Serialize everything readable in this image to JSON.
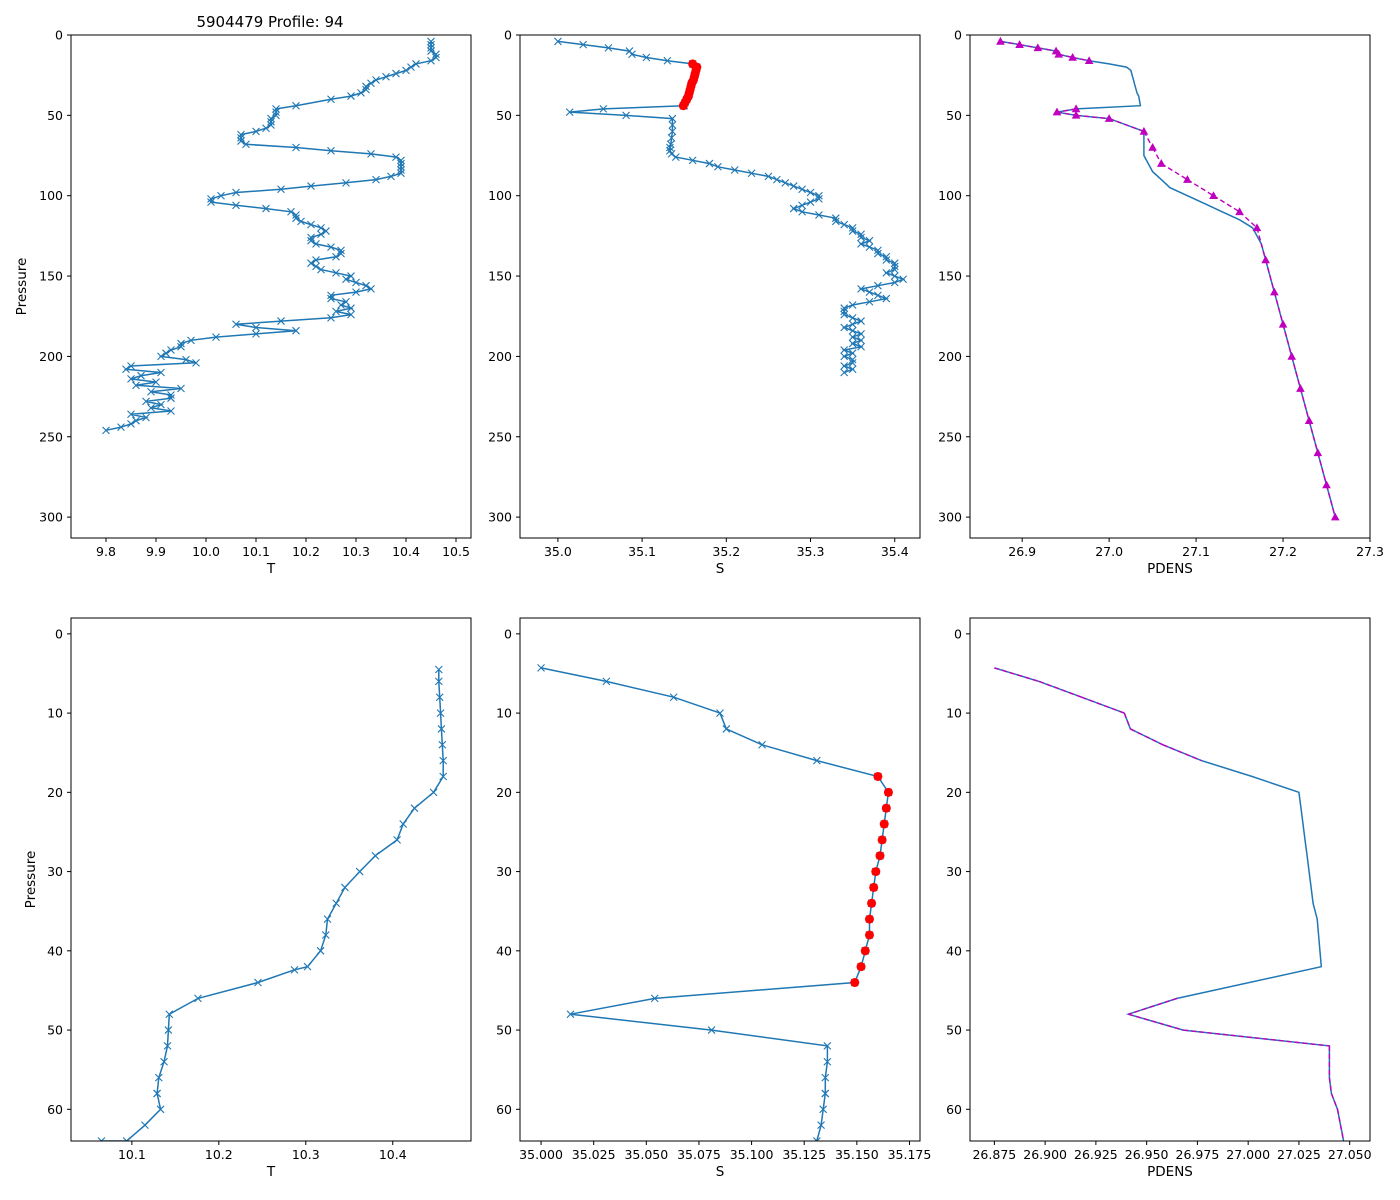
{
  "figure_title": "5904479 Profile: 94",
  "colors": {
    "line": "#1f77b4",
    "qc_flag": "#ff0000",
    "density": "#bf00bf"
  },
  "chart_data": [
    {
      "id": "t_full",
      "type": "line",
      "xlabel": "T",
      "ylabel": "Pressure",
      "xlim": [
        9.73,
        10.53
      ],
      "ylim": [
        313,
        0
      ],
      "xticks": [
        "9.8",
        "9.9",
        "10.0",
        "10.1",
        "10.2",
        "10.3",
        "10.4",
        "10.5"
      ],
      "yticks": [
        "0",
        "50",
        "100",
        "150",
        "200",
        "250",
        "300"
      ],
      "series": [
        {
          "name": "T",
          "marker": "x",
          "x": [
            10.45,
            10.45,
            10.45,
            10.45,
            10.46,
            10.46,
            10.45,
            10.42,
            10.41,
            10.4,
            10.38,
            10.36,
            10.34,
            10.33,
            10.32,
            10.32,
            10.31,
            10.29,
            10.25,
            10.18,
            10.14,
            10.14,
            10.14,
            10.13,
            10.13,
            10.13,
            10.12,
            10.1,
            10.07,
            10.07,
            10.07,
            10.08,
            10.18,
            10.25,
            10.33,
            10.38,
            10.39,
            10.39,
            10.39,
            10.39,
            10.39,
            10.37,
            10.34,
            10.28,
            10.21,
            10.15,
            10.06,
            10.03,
            10.01,
            10.01,
            10.06,
            10.12,
            10.17,
            10.18,
            10.18,
            10.19,
            10.21,
            10.23,
            10.24,
            10.23,
            10.21,
            10.21,
            10.22,
            10.25,
            10.27,
            10.27,
            10.26,
            10.22,
            10.21,
            10.22,
            10.23,
            10.26,
            10.29,
            10.28,
            10.3,
            10.32,
            10.33,
            10.3,
            10.25,
            10.25,
            10.28,
            10.27,
            10.29,
            10.26,
            10.29,
            10.25,
            10.15,
            10.06,
            10.1,
            10.18,
            10.1,
            10.02,
            9.97,
            9.95,
            9.95,
            9.93,
            9.92,
            9.91,
            9.96,
            9.98,
            9.85,
            9.84,
            9.91,
            9.87,
            9.85,
            9.9,
            9.86,
            9.95,
            9.89,
            9.93,
            9.93,
            9.88,
            9.91,
            9.89,
            9.93,
            9.85,
            9.88,
            9.86,
            9.85,
            9.83,
            9.8
          ],
          "y": [
            4,
            6,
            8,
            10,
            12,
            14,
            16,
            18,
            20,
            22,
            24,
            26,
            28,
            30,
            32,
            34,
            36,
            38,
            40,
            44,
            46,
            48,
            50,
            52,
            54,
            56,
            58,
            60,
            62,
            64,
            66,
            68,
            70,
            72,
            74,
            76,
            78,
            80,
            82,
            84,
            86,
            88,
            90,
            92,
            94,
            96,
            98,
            100,
            102,
            104,
            106,
            108,
            110,
            112,
            114,
            116,
            118,
            120,
            122,
            124,
            126,
            128,
            130,
            132,
            134,
            136,
            138,
            140,
            142,
            144,
            146,
            148,
            150,
            152,
            154,
            156,
            158,
            160,
            162,
            164,
            166,
            168,
            170,
            172,
            174,
            176,
            178,
            180,
            182,
            184,
            186,
            188,
            190,
            192,
            194,
            196,
            198,
            200,
            202,
            204,
            206,
            208,
            210,
            212,
            214,
            216,
            218,
            220,
            222,
            224,
            226,
            228,
            230,
            232,
            234,
            236,
            238,
            240,
            242,
            244,
            246
          ]
        }
      ]
    },
    {
      "id": "s_full",
      "type": "line",
      "xlabel": "S",
      "ylabel": "",
      "xlim": [
        34.955,
        35.43
      ],
      "ylim": [
        313,
        0
      ],
      "xticks": [
        "35.0",
        "35.1",
        "35.2",
        "35.3",
        "35.4"
      ],
      "yticks": [
        "0",
        "50",
        "100",
        "150",
        "200",
        "250",
        "300"
      ],
      "series": [
        {
          "name": "S",
          "marker": "x",
          "x": [
            35.0,
            35.03,
            35.06,
            35.085,
            35.088,
            35.105,
            35.13,
            35.16,
            35.165,
            35.164,
            35.163,
            35.162,
            35.161,
            35.159,
            35.158,
            35.157,
            35.156,
            35.155,
            35.153,
            35.151,
            35.149,
            35.15,
            35.054,
            35.014,
            35.081,
            35.136,
            35.136,
            35.136,
            35.135,
            35.134,
            35.133,
            35.133,
            35.135,
            35.14,
            35.16,
            35.18,
            35.19,
            35.21,
            35.23,
            35.25,
            35.26,
            35.27,
            35.28,
            35.29,
            35.3,
            35.31,
            35.31,
            35.3,
            35.29,
            35.28,
            35.29,
            35.31,
            35.33,
            35.33,
            35.34,
            35.35,
            35.35,
            35.36,
            35.36,
            35.37,
            35.36,
            35.37,
            35.38,
            35.38,
            35.39,
            35.39,
            35.4,
            35.4,
            35.4,
            35.39,
            35.4,
            35.41,
            35.4,
            35.38,
            35.36,
            35.37,
            35.38,
            35.39,
            35.37,
            35.35,
            35.34,
            35.34,
            35.34,
            35.35,
            35.36,
            35.35,
            35.34,
            35.35,
            35.36,
            35.35,
            35.36,
            35.35,
            35.36,
            35.34,
            35.35,
            35.34,
            35.35,
            35.35,
            35.34,
            35.35,
            35.34
          ],
          "y": [
            4,
            6,
            8,
            10,
            12,
            14,
            16,
            18,
            20,
            22,
            24,
            26,
            28,
            30,
            32,
            34,
            36,
            38,
            40,
            42,
            44,
            44,
            46,
            48,
            50,
            52,
            56,
            60,
            64,
            68,
            70,
            72,
            74,
            76,
            78,
            80,
            82,
            84,
            86,
            88,
            90,
            92,
            94,
            96,
            98,
            100,
            102,
            104,
            106,
            108,
            110,
            112,
            114,
            116,
            118,
            120,
            122,
            124,
            126,
            128,
            130,
            132,
            134,
            136,
            138,
            140,
            142,
            144,
            146,
            148,
            150,
            152,
            154,
            156,
            158,
            160,
            162,
            164,
            166,
            168,
            170,
            172,
            174,
            176,
            178,
            180,
            182,
            184,
            186,
            188,
            190,
            192,
            194,
            196,
            198,
            200,
            202,
            204,
            206,
            208,
            210
          ]
        }
      ],
      "flagged": {
        "x": [
          35.16,
          35.165,
          35.164,
          35.163,
          35.162,
          35.161,
          35.159,
          35.158,
          35.157,
          35.156,
          35.155,
          35.153,
          35.151,
          35.149
        ],
        "y": [
          18,
          20,
          22,
          24,
          26,
          28,
          30,
          32,
          34,
          36,
          38,
          40,
          42,
          44
        ]
      }
    },
    {
      "id": "pdens_full",
      "type": "line",
      "xlabel": "PDENS",
      "ylabel": "",
      "xlim": [
        26.84,
        27.3
      ],
      "ylim": [
        313,
        0
      ],
      "xticks": [
        "26.9",
        "27.0",
        "27.1",
        "27.2",
        "27.3"
      ],
      "yticks": [
        "0",
        "50",
        "100",
        "150",
        "200",
        "250",
        "300"
      ],
      "series": [
        {
          "name": "PDENS",
          "marker": "none",
          "x": [
            26.875,
            26.897,
            26.918,
            26.939,
            26.942,
            26.958,
            26.977,
            27.0,
            27.02,
            27.025,
            27.026,
            27.027,
            27.028,
            27.029,
            27.03,
            27.031,
            27.032,
            27.034,
            27.036,
            26.962,
            26.94,
            26.962,
            27.0,
            27.04,
            27.04,
            27.04,
            27.04,
            27.045,
            27.05,
            27.06,
            27.07,
            27.09,
            27.11,
            27.13,
            27.15,
            27.165,
            27.175,
            27.18,
            27.185,
            27.19,
            27.195,
            27.2,
            27.205,
            27.21,
            27.215,
            27.22,
            27.225,
            27.23,
            27.235,
            27.24,
            27.245,
            27.25,
            27.255,
            27.26
          ],
          "y": [
            4,
            6,
            8,
            10,
            12,
            14,
            16,
            18,
            20,
            22,
            24,
            26,
            28,
            30,
            32,
            34,
            36,
            38,
            44,
            46,
            48,
            50,
            52,
            60,
            65,
            70,
            75,
            80,
            85,
            90,
            95,
            100,
            105,
            110,
            115,
            120,
            130,
            140,
            150,
            160,
            170,
            180,
            190,
            200,
            210,
            220,
            230,
            240,
            250,
            260,
            270,
            280,
            290,
            300
          ]
        }
      ],
      "markers": {
        "x": [
          26.875,
          26.897,
          26.918,
          26.939,
          26.942,
          26.958,
          26.977,
          26.962,
          26.94,
          26.962,
          27.0,
          27.04,
          27.05,
          27.06,
          27.09,
          27.12,
          27.15,
          27.17,
          27.18,
          27.19,
          27.2,
          27.21,
          27.22,
          27.23,
          27.24,
          27.25,
          27.26
        ],
        "y": [
          4,
          6,
          8,
          10,
          12,
          14,
          16,
          46,
          48,
          50,
          52,
          60,
          70,
          80,
          90,
          100,
          110,
          120,
          140,
          160,
          180,
          200,
          220,
          240,
          260,
          280,
          300
        ]
      }
    },
    {
      "id": "t_zoom",
      "type": "line",
      "xlabel": "T",
      "ylabel": "Pressure",
      "xlim": [
        10.03,
        10.49
      ],
      "ylim": [
        64,
        -2
      ],
      "xticks": [
        "10.1",
        "10.2",
        "10.3",
        "10.4"
      ],
      "yticks": [
        "0",
        "10",
        "20",
        "30",
        "40",
        "50",
        "60"
      ],
      "series": [
        {
          "name": "T",
          "marker": "x",
          "x": [
            10.453,
            10.453,
            10.454,
            10.455,
            10.456,
            10.457,
            10.458,
            10.458,
            10.447,
            10.425,
            10.412,
            10.405,
            10.38,
            10.362,
            10.345,
            10.335,
            10.325,
            10.323,
            10.317,
            10.302,
            10.287,
            10.245,
            10.176,
            10.143,
            10.142,
            10.141,
            10.137,
            10.131,
            10.129,
            10.129,
            10.133,
            10.115,
            10.094,
            10.065
          ],
          "y": [
            4.5,
            6,
            8,
            10,
            12,
            14,
            16,
            18,
            20,
            22,
            24,
            26,
            28,
            30,
            32,
            34,
            36,
            38,
            40,
            42,
            42.4,
            44,
            46,
            48,
            50,
            52,
            54,
            56,
            58,
            58,
            60,
            62,
            64,
            64
          ]
        }
      ]
    },
    {
      "id": "s_zoom",
      "type": "line",
      "xlabel": "S",
      "ylabel": "",
      "xlim": [
        34.99,
        35.18
      ],
      "ylim": [
        64,
        -2
      ],
      "xticks": [
        "35.000",
        "35.025",
        "35.050",
        "35.075",
        "35.100",
        "35.125",
        "35.150",
        "35.175"
      ],
      "yticks": [
        "0",
        "10",
        "20",
        "30",
        "40",
        "50",
        "60"
      ],
      "series": [
        {
          "name": "S",
          "marker": "x",
          "x": [
            35.0,
            35.031,
            35.063,
            35.085,
            35.088,
            35.105,
            35.131,
            35.16,
            35.165,
            35.164,
            35.163,
            35.162,
            35.161,
            35.159,
            35.158,
            35.157,
            35.156,
            35.156,
            35.154,
            35.152,
            35.149,
            35.054,
            35.014,
            35.081,
            35.136,
            35.136,
            35.135,
            35.135,
            35.135,
            35.134,
            35.133,
            35.131
          ],
          "y": [
            4.3,
            6,
            8,
            10,
            12,
            14,
            16,
            18,
            20,
            22,
            24,
            26,
            28,
            30,
            32,
            34,
            36,
            38,
            40,
            42,
            44,
            46,
            48,
            50,
            52,
            54,
            56,
            58,
            58,
            60,
            62,
            64
          ]
        }
      ],
      "flagged": {
        "x": [
          35.16,
          35.165,
          35.164,
          35.163,
          35.162,
          35.161,
          35.159,
          35.158,
          35.157,
          35.156,
          35.156,
          35.154,
          35.152,
          35.149
        ],
        "y": [
          18,
          20,
          22,
          24,
          26,
          28,
          30,
          32,
          34,
          36,
          38,
          40,
          42,
          44
        ]
      }
    },
    {
      "id": "pdens_zoom",
      "type": "line",
      "xlabel": "PDENS",
      "ylabel": "",
      "xlim": [
        26.863,
        27.06
      ],
      "ylim": [
        64,
        -2
      ],
      "xticks": [
        "26.875",
        "26.900",
        "26.925",
        "26.950",
        "26.975",
        "27.000",
        "27.025",
        "27.050"
      ],
      "yticks": [
        "0",
        "10",
        "20",
        "30",
        "40",
        "50",
        "60"
      ],
      "series": [
        {
          "name": "PDENS",
          "marker": "none",
          "x": [
            26.875,
            26.897,
            26.918,
            26.939,
            26.942,
            26.958,
            26.977,
            27.002,
            27.025,
            27.026,
            27.027,
            27.028,
            27.029,
            27.03,
            27.031,
            27.032,
            27.034,
            27.036,
            26.965,
            26.941,
            26.968,
            27.04,
            27.04,
            27.041,
            27.044,
            27.047
          ],
          "y": [
            4.3,
            6,
            8,
            10,
            12,
            14,
            16,
            18,
            20,
            22,
            24,
            26,
            28,
            30,
            32,
            34,
            36,
            42,
            46,
            48,
            50,
            52,
            56,
            58,
            60,
            64
          ]
        }
      ],
      "markers": {
        "x": [
          26.875,
          26.897,
          26.918,
          26.939,
          26.942,
          26.958,
          26.977,
          26.965,
          26.941,
          26.968,
          27.04,
          27.04,
          27.041,
          27.044,
          27.047
        ],
        "y": [
          4.3,
          6,
          8,
          10,
          12,
          14,
          16,
          46,
          48,
          50,
          52,
          56,
          58,
          60,
          64
        ]
      }
    }
  ]
}
